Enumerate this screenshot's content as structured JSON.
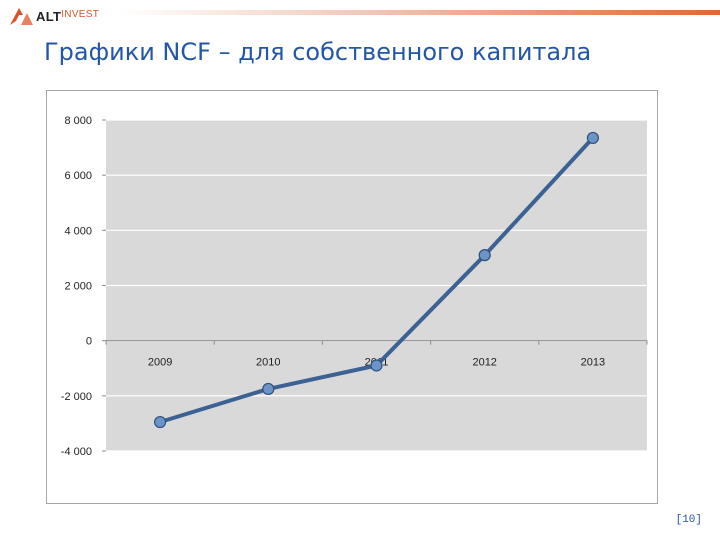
{
  "header": {
    "logo_alt": "ALT",
    "logo_invest": "INVEST",
    "title": "Графики NCF – для собственного капитала"
  },
  "colors": {
    "title": "#2456a8",
    "plot_background": "#d9d9d9",
    "line": "#3c6294",
    "marker_fill": "#6d94c7",
    "marker_stroke": "#2f4f7c",
    "accent": "#e0663a"
  },
  "chart_data": {
    "type": "line",
    "categories": [
      "2009",
      "2010",
      "2011",
      "2012",
      "2013"
    ],
    "series": [
      {
        "values": [
          -2950,
          -1750,
          -900,
          3100,
          7350
        ]
      }
    ],
    "yticks": [
      "8 000",
      "6 000",
      "4 000",
      "2 000",
      "0",
      "-2 000",
      "-4 000"
    ],
    "ytick_values": [
      8000,
      6000,
      4000,
      2000,
      0,
      -2000,
      -4000
    ],
    "ylim": [
      -4000,
      8000
    ],
    "grid": true,
    "legend": "none",
    "category_labels_position": "at zero line"
  },
  "footer": {
    "page_number": "[10]"
  }
}
